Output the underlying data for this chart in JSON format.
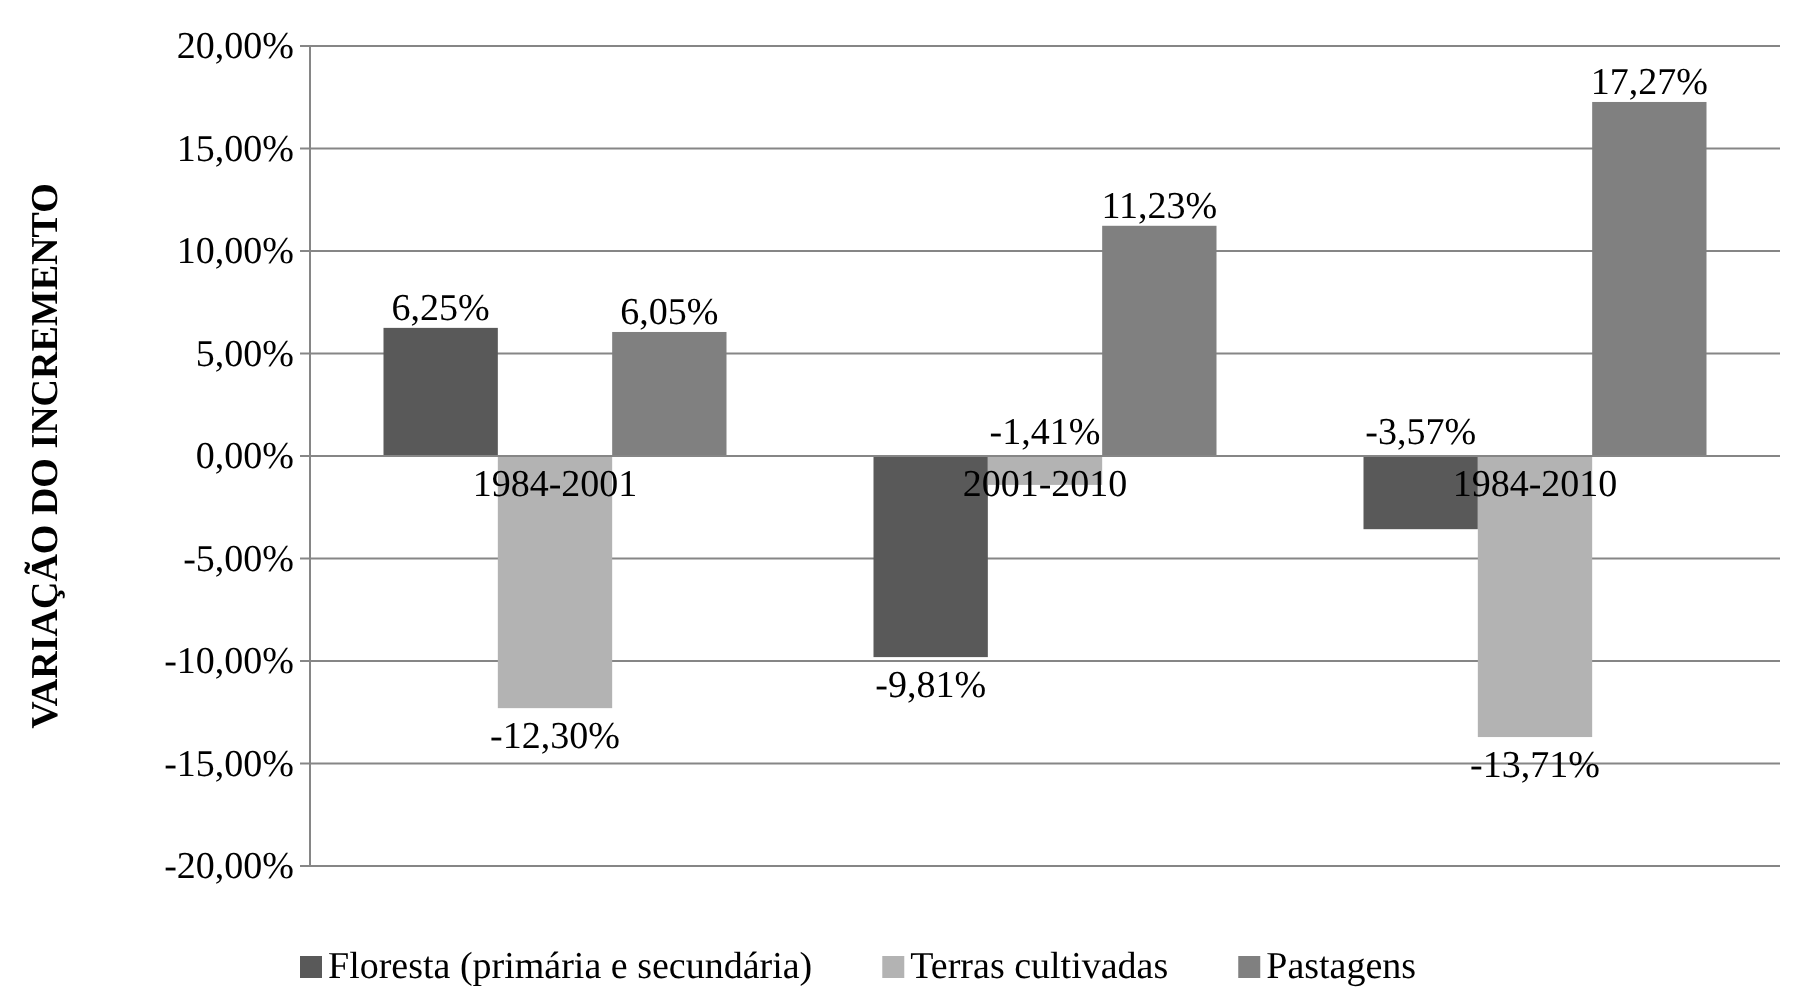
{
  "chart_data": {
    "type": "bar",
    "ylabel": "VARIAÇÃO DO INCREMENTO",
    "categories": [
      "1984-2001",
      "2001-2010",
      "1984-2010"
    ],
    "series": [
      {
        "name": "Floresta (primária e secundária)",
        "color": "#595959",
        "values": [
          6.25,
          -9.81,
          -3.57
        ],
        "value_labels": [
          "6,25%",
          "-9,81%",
          "-3,57%"
        ]
      },
      {
        "name": "Terras cultivadas",
        "color": "#b3b3b3",
        "values": [
          -12.3,
          -1.41,
          -13.71
        ],
        "value_labels": [
          "-12,30%",
          "-1,41%",
          "-13,71%"
        ]
      },
      {
        "name": "Pastagens",
        "color": "#808080",
        "values": [
          6.05,
          11.23,
          17.27
        ],
        "value_labels": [
          "6,05%",
          "11,23%",
          "17,27%"
        ]
      }
    ],
    "ylim": [
      -20,
      20
    ],
    "yticks": [
      {
        "value": -20,
        "label": "-20,00%"
      },
      {
        "value": -15,
        "label": "-15,00%"
      },
      {
        "value": -10,
        "label": "-10,00%"
      },
      {
        "value": -5,
        "label": "-5,00%"
      },
      {
        "value": 0,
        "label": "0,00%"
      },
      {
        "value": 5,
        "label": "5,00%"
      },
      {
        "value": 10,
        "label": "10,00%"
      },
      {
        "value": 15,
        "label": "15,00%"
      },
      {
        "value": 20,
        "label": "20,00%"
      }
    ],
    "grid": "y",
    "legend": "bottom"
  }
}
